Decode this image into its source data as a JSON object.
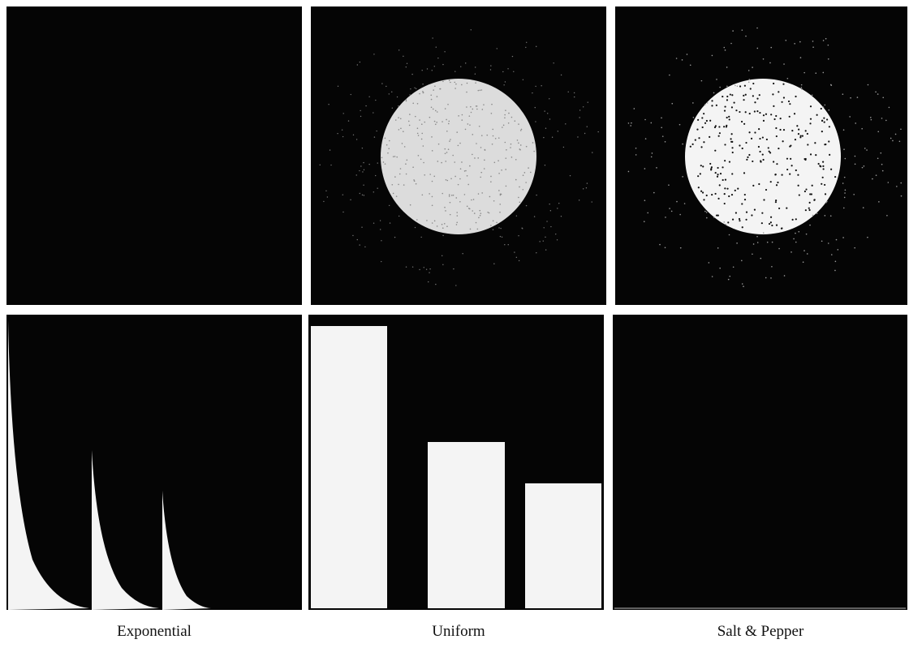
{
  "captions": [
    "Exponential",
    "Uniform",
    "Salt & Pepper"
  ]
}
